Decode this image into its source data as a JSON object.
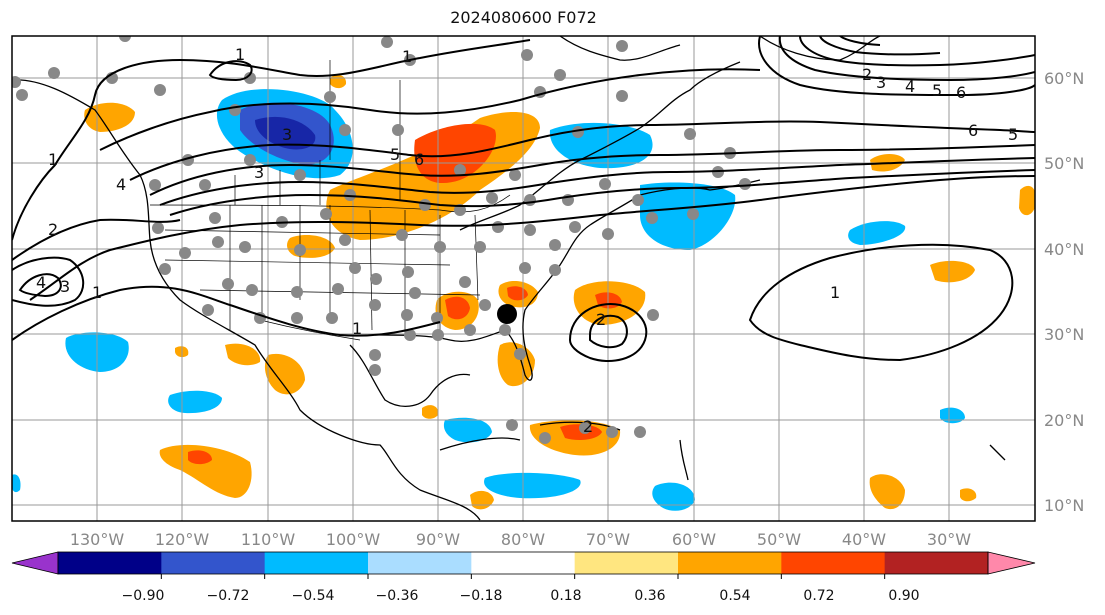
{
  "title": "2024080600 F072",
  "lat_labels": [
    "60°N",
    "50°N",
    "40°N",
    "30°N",
    "20°N",
    "10°N"
  ],
  "lon_labels": [
    "130°W",
    "120°W",
    "110°W",
    "100°W",
    "90°W",
    "80°W",
    "70°W",
    "60°W",
    "50°W",
    "40°W",
    "30°W"
  ],
  "colorbar": {
    "ticks": [
      "−0.90",
      "−0.72",
      "−0.54",
      "−0.36",
      "−0.18",
      "0.18",
      "0.36",
      "0.54",
      "0.72",
      "0.90"
    ],
    "colors": [
      "#9933cc",
      "#000088",
      "#3355cc",
      "#00bbff",
      "#aaddff",
      "#ffffff",
      "#ffe680",
      "#ffa500",
      "#ff4500",
      "#b22222",
      "#ff88aa"
    ]
  },
  "contour_labels": [
    "1",
    "1",
    "1",
    "1",
    "1",
    "1",
    "2",
    "2",
    "2",
    "2",
    "3",
    "3",
    "3",
    "3",
    "4",
    "4",
    "4",
    "5",
    "5",
    "5",
    "6",
    "6",
    "6"
  ]
}
